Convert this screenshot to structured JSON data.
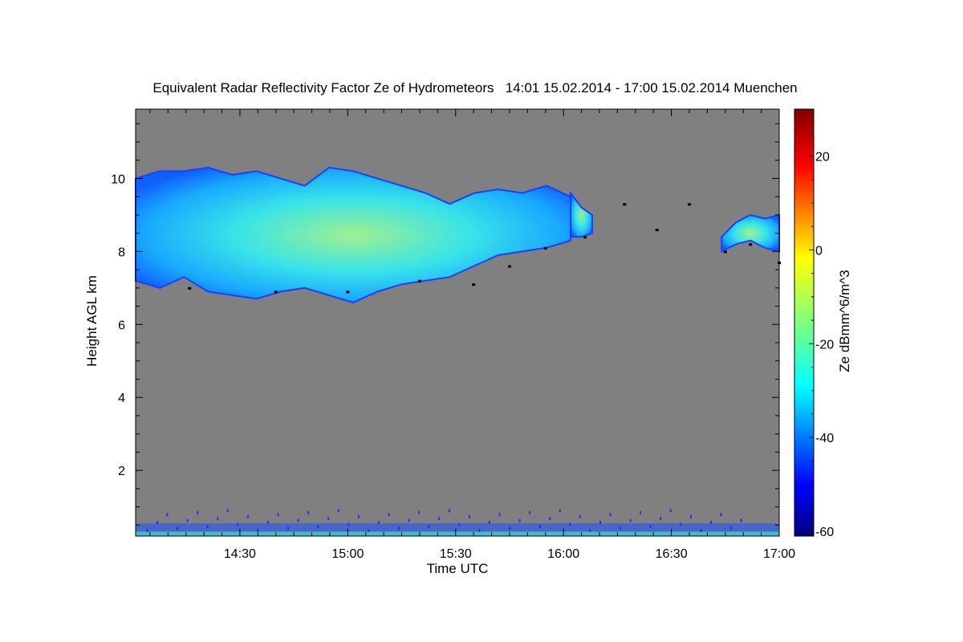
{
  "chart_data": {
    "type": "heatmap",
    "title": "Equivalent Radar Reflectivity Factor Ze of Hydrometeors   14:01 15.02.2014 - 17:00 15.02.2014 Muenchen",
    "xlabel": "Time UTC",
    "ylabel": "Height AGL km",
    "colorbar_label": "Ze dBmm^6/m^3",
    "x_range_minutes_utc": [
      841,
      1020
    ],
    "ylim": [
      0.2,
      11.9
    ],
    "clim": [
      -61,
      30
    ],
    "x_ticks": [
      {
        "minutes": 870,
        "label": "14:30"
      },
      {
        "minutes": 900,
        "label": "15:00"
      },
      {
        "minutes": 930,
        "label": "15:30"
      },
      {
        "minutes": 960,
        "label": "16:00"
      },
      {
        "minutes": 990,
        "label": "16:30"
      },
      {
        "minutes": 1020,
        "label": "17:00"
      }
    ],
    "y_ticks": [
      {
        "value": 2,
        "label": "2"
      },
      {
        "value": 4,
        "label": "4"
      },
      {
        "value": 6,
        "label": "6"
      },
      {
        "value": 8,
        "label": "8"
      },
      {
        "value": 10,
        "label": "10"
      }
    ],
    "colorbar_ticks": [
      {
        "value": 20,
        "label": "20"
      },
      {
        "value": 0,
        "label": "0"
      },
      {
        "value": -20,
        "label": "-20"
      },
      {
        "value": -40,
        "label": "-40"
      },
      {
        "value": -60,
        "label": "-60"
      }
    ],
    "background_color": "#808080",
    "cloud_layers": [
      {
        "start": 841,
        "end": 962,
        "top_km": [
          10.0,
          10.2,
          10.2,
          10.3,
          10.1,
          10.2,
          10.0,
          9.8,
          10.3,
          10.2,
          10.0,
          9.8,
          9.6,
          9.3,
          9.6,
          9.7,
          9.6,
          9.8,
          9.5
        ],
        "base_km": [
          7.2,
          7.0,
          7.3,
          6.9,
          6.8,
          6.7,
          6.9,
          7.0,
          6.8,
          6.6,
          6.9,
          7.1,
          7.2,
          7.3,
          7.6,
          7.9,
          8.0,
          8.1,
          8.3
        ]
      },
      {
        "start": 962,
        "end": 968,
        "top_km": [
          9.6,
          9.2,
          9.0
        ],
        "base_km": [
          8.4,
          8.4,
          8.5
        ]
      },
      {
        "start": 1004,
        "end": 1020,
        "top_km": [
          8.4,
          8.8,
          9.0,
          8.9,
          9.0
        ],
        "base_km": [
          8.0,
          8.2,
          8.3,
          8.1,
          8.0
        ]
      }
    ],
    "cloud_base_points": [
      {
        "x": 856,
        "y": 7.0
      },
      {
        "x": 880,
        "y": 6.9
      },
      {
        "x": 900,
        "y": 6.9
      },
      {
        "x": 920,
        "y": 7.2
      },
      {
        "x": 935,
        "y": 7.1
      },
      {
        "x": 945,
        "y": 7.6
      },
      {
        "x": 955,
        "y": 8.1
      },
      {
        "x": 966,
        "y": 8.4
      },
      {
        "x": 977,
        "y": 9.3
      },
      {
        "x": 986,
        "y": 8.6
      },
      {
        "x": 995,
        "y": 9.3
      },
      {
        "x": 1005,
        "y": 8.0
      },
      {
        "x": 1012,
        "y": 8.2
      },
      {
        "x": 1020,
        "y": 7.7
      }
    ],
    "ground_clutter_km": [
      0.2,
      1.3
    ]
  }
}
